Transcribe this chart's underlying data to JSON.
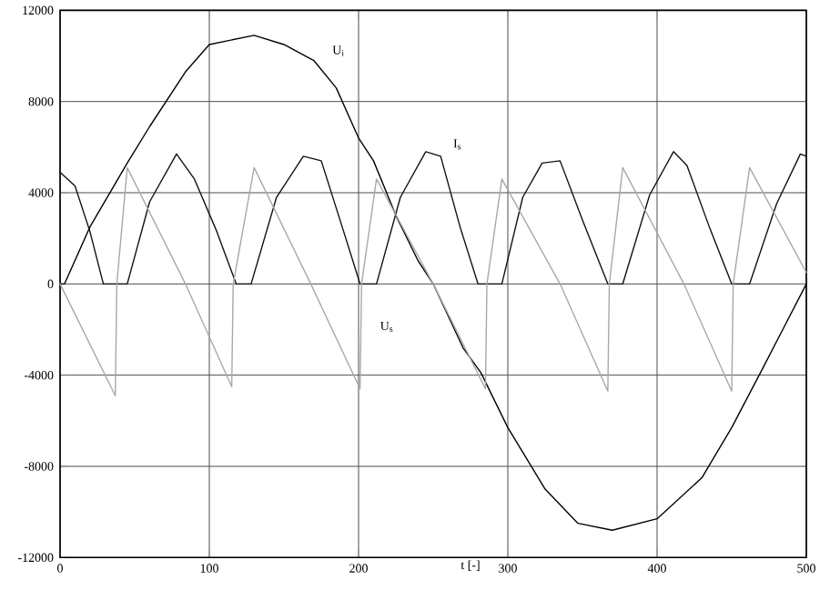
{
  "chart_data": {
    "type": "line",
    "xlabel": "t [-]",
    "xlim": [
      0,
      500
    ],
    "xticks": [
      0,
      100,
      200,
      300,
      400,
      500
    ],
    "ylim": [
      -12000,
      12000
    ],
    "yticks": [
      -12000,
      -8000,
      -4000,
      0,
      4000,
      8000,
      12000
    ],
    "grid": true,
    "legend": false,
    "marker": "none",
    "line_style": "solid",
    "series": [
      {
        "name": "U$_{i}$",
        "color": "#000000",
        "x": [
          0,
          3,
          20,
          45,
          60,
          84,
          100,
          130,
          150,
          170,
          185,
          200,
          210,
          225,
          240,
          250,
          270,
          282,
          300,
          325,
          347,
          370,
          400,
          430,
          450,
          470,
          485,
          500
        ],
        "values": [
          0,
          0,
          2500,
          5300,
          6900,
          9300,
          10500,
          10900,
          10500,
          9800,
          8600,
          6400,
          5400,
          3000,
          1000,
          0,
          -2800,
          -3900,
          -6300,
          -9000,
          -10500,
          -10800,
          -10300,
          -8500,
          -6300,
          -3800,
          -1900,
          0
        ]
      },
      {
        "name": "I$_{s}$",
        "color": "#111111",
        "x": [
          0,
          10,
          20,
          29,
          45,
          60,
          78,
          90,
          105,
          118,
          128,
          145,
          163,
          175,
          190,
          201,
          212,
          228,
          245,
          255,
          268,
          280,
          296,
          310,
          323,
          335,
          350,
          367,
          377,
          395,
          411,
          420,
          435,
          450,
          462,
          480,
          496,
          500
        ],
        "values": [
          4900,
          4300,
          2300,
          0,
          0,
          3600,
          5700,
          4600,
          2300,
          0,
          0,
          3800,
          5600,
          5400,
          2300,
          0,
          0,
          3800,
          5800,
          5600,
          2500,
          0,
          0,
          3800,
          5300,
          5400,
          2800,
          0,
          0,
          3900,
          5800,
          5200,
          2500,
          0,
          0,
          3500,
          5700,
          5600
        ]
      },
      {
        "name": "U$_{s}$",
        "color": "#a8a8a8",
        "x": [
          0,
          37,
          38,
          45,
          84,
          115,
          116,
          130,
          168,
          201,
          202,
          212,
          250,
          285,
          286,
          296,
          335,
          367,
          368,
          377,
          418,
          450,
          451,
          462,
          500
        ],
        "values": [
          0,
          -4900,
          0,
          5100,
          0,
          -4500,
          0,
          5100,
          0,
          -4600,
          0,
          4600,
          0,
          -4600,
          0,
          4600,
          0,
          -4700,
          0,
          5100,
          0,
          -4700,
          0,
          5100,
          500
        ]
      }
    ]
  }
}
